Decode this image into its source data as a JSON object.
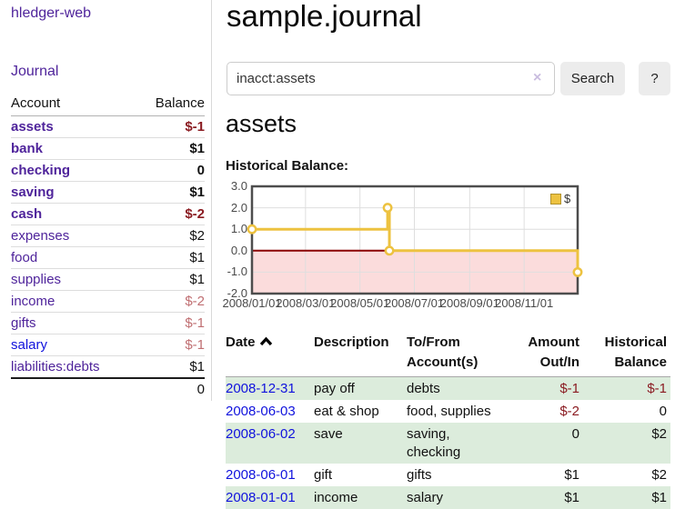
{
  "app_title": "hledger-web",
  "sidebar": {
    "nav_journal": "Journal",
    "accounts": {
      "header_account": "Account",
      "header_balance": "Balance",
      "rows": [
        {
          "name": "assets",
          "balance": "$-1"
        },
        {
          "name": "bank",
          "balance": "$1"
        },
        {
          "name": "checking",
          "balance": "0"
        },
        {
          "name": "saving",
          "balance": "$1"
        },
        {
          "name": "cash",
          "balance": "$-2"
        },
        {
          "name": "expenses",
          "balance": "$2"
        },
        {
          "name": "food",
          "balance": "$1"
        },
        {
          "name": "supplies",
          "balance": "$1"
        },
        {
          "name": "income",
          "balance": "$-2"
        },
        {
          "name": "gifts",
          "balance": "$-1"
        },
        {
          "name": "salary",
          "balance": "$-1"
        },
        {
          "name": "liabilities:debts",
          "balance": "$1"
        }
      ],
      "total": "0"
    }
  },
  "main": {
    "title": "sample.journal",
    "search": {
      "value": "inacct:assets",
      "clear_icon": "×",
      "search_button": "Search",
      "help_button": "?"
    },
    "account_heading": "assets",
    "chart_heading": "Historical Balance:"
  },
  "chart_data": {
    "type": "line",
    "title": "Historical Balance:",
    "step": true,
    "series": [
      {
        "name": "$",
        "color": "#edc240",
        "points": [
          {
            "date": "2008-01-01",
            "x_day": 0,
            "y": 1
          },
          {
            "date": "2008-06-01",
            "x_day": 152,
            "y": 2
          },
          {
            "date": "2008-06-03",
            "x_day": 154,
            "y": 0
          },
          {
            "date": "2008-12-31",
            "x_day": 365,
            "y": -1
          }
        ]
      }
    ],
    "x_axis": {
      "range_days": [
        0,
        365
      ],
      "tick_days": [
        0,
        60,
        121,
        182,
        244,
        305
      ],
      "tick_labels": [
        "2008/01/01",
        "2008/03/01",
        "2008/05/01",
        "2008/07/01",
        "2008/09/01",
        "2008/11/01"
      ]
    },
    "y_axis": {
      "range": [
        -2,
        3
      ],
      "tick_labels": [
        "3.0",
        "2.0",
        "1.0",
        "0.0",
        "-1.0",
        "-2.0"
      ]
    },
    "legend": {
      "label": "$",
      "position": "top-right",
      "swatch_color": "#edc240"
    },
    "styles": {
      "zero_line_color": "#8b0000",
      "negative_region_color": "#fbdcdc",
      "grid_color": "#dedede",
      "border_color": "#4d4d4d"
    }
  },
  "register": {
    "headers": {
      "date": "Date",
      "description": "Description",
      "accounts": "To/From Account(s)",
      "amount": "Amount Out/In",
      "balance": "Historical Balance"
    },
    "rows": [
      {
        "date": "2008-12-31",
        "description": "pay off",
        "accounts": "debts",
        "amount": "$-1",
        "balance": "$-1"
      },
      {
        "date": "2008-06-03",
        "description": "eat & shop",
        "accounts": "food, supplies",
        "amount": "$-2",
        "balance": "0"
      },
      {
        "date": "2008-06-02",
        "description": "save",
        "accounts": "saving, checking",
        "amount": "0",
        "balance": "$2"
      },
      {
        "date": "2008-06-01",
        "description": "gift",
        "accounts": "gifts",
        "amount": "$1",
        "balance": "$2"
      },
      {
        "date": "2008-01-01",
        "description": "income",
        "accounts": "salary",
        "amount": "$1",
        "balance": "$1"
      }
    ]
  }
}
